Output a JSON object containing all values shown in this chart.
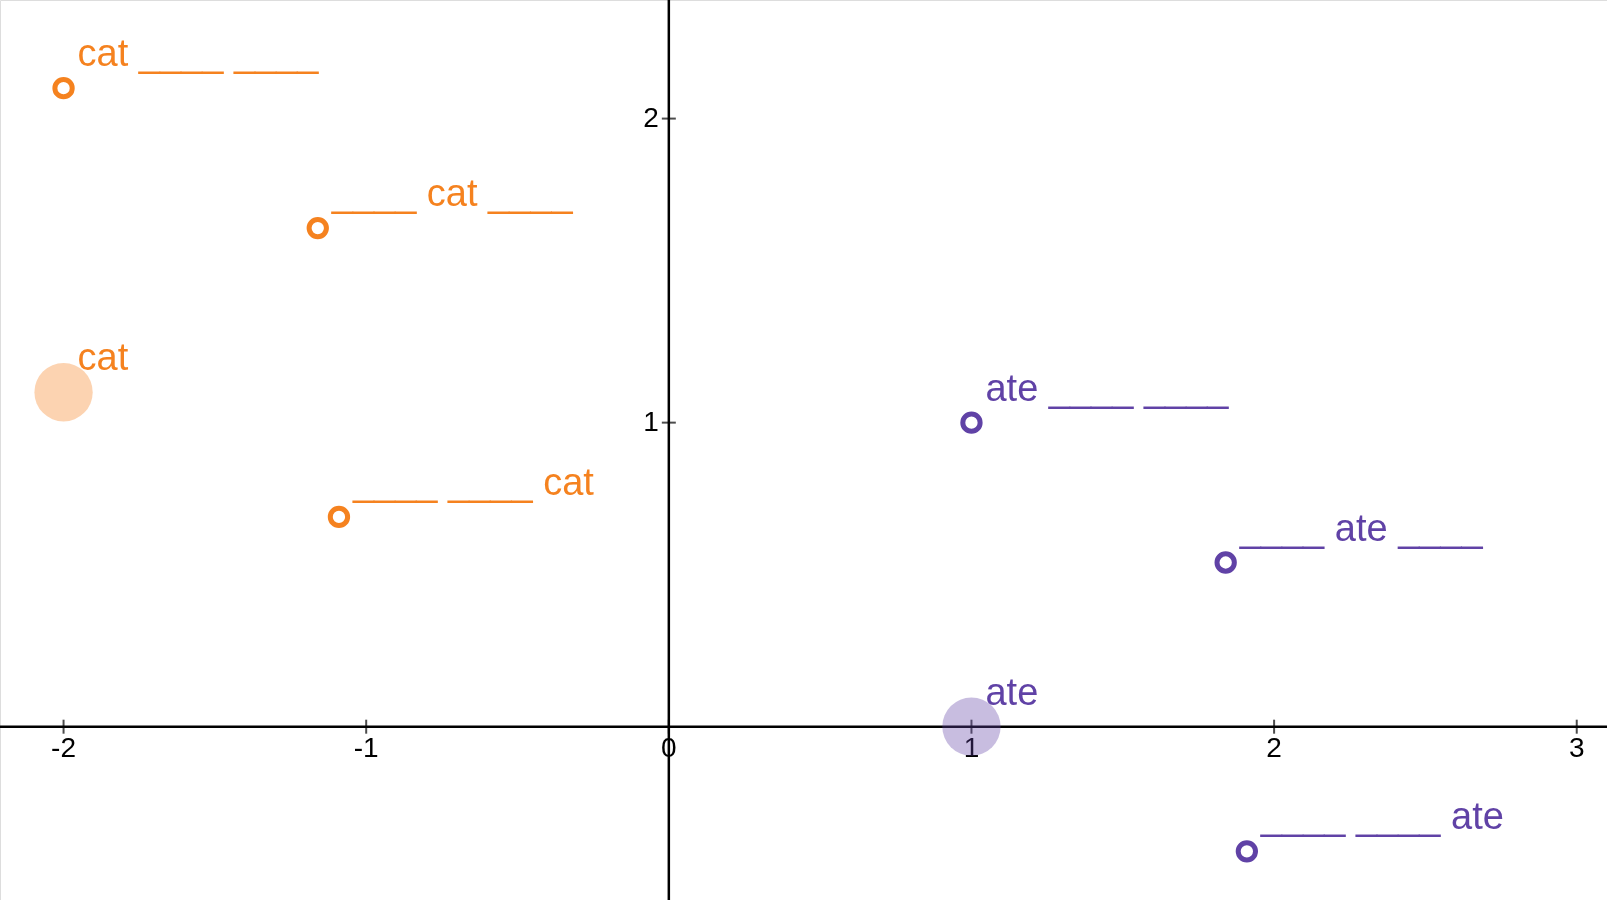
{
  "chart_data": {
    "type": "scatter",
    "xlim": [
      -2.21,
      3.1
    ],
    "ylim": [
      -0.57,
      2.39
    ],
    "xticks": [
      -2,
      -1,
      0,
      1,
      2,
      3
    ],
    "yticks": [
      1,
      2
    ],
    "grid": false,
    "marker": "circle",
    "series": [
      {
        "color": "#f5821f",
        "x": [
          -2,
          -1.16,
          -1.09
        ],
        "values": [
          2.1,
          1.64,
          0.69
        ]
      },
      {
        "type": "bubble",
        "color": "#f5821f",
        "x": [
          -2
        ],
        "values": [
          1.1
        ],
        "sizes": [
          1
        ]
      },
      {
        "color": "#6042a6",
        "x": [
          1,
          1.84,
          1.91
        ],
        "values": [
          1,
          0.54,
          -0.41
        ]
      },
      {
        "type": "bubble",
        "color": "#6042a6",
        "x": [
          1
        ],
        "values": [
          0
        ],
        "sizes": [
          1
        ]
      }
    ],
    "annotations": [
      {
        "text": "cat ____ ____",
        "x": -2,
        "y": 2.1
      },
      {
        "text": "____ cat ____",
        "x": -1.16,
        "y": 1.64
      },
      {
        "text": "cat",
        "x": -2,
        "y": 1.1
      },
      {
        "text": "____ ____ cat",
        "x": -1.09,
        "y": 0.69
      },
      {
        "text": "ate ____ ____",
        "x": 1,
        "y": 1
      },
      {
        "text": "____ ate ____",
        "x": 1.84,
        "y": 0.54
      },
      {
        "text": "ate",
        "x": 1,
        "y": 0
      },
      {
        "text": "____ ____ ate",
        "x": 1.91,
        "y": -0.41
      }
    ]
  }
}
